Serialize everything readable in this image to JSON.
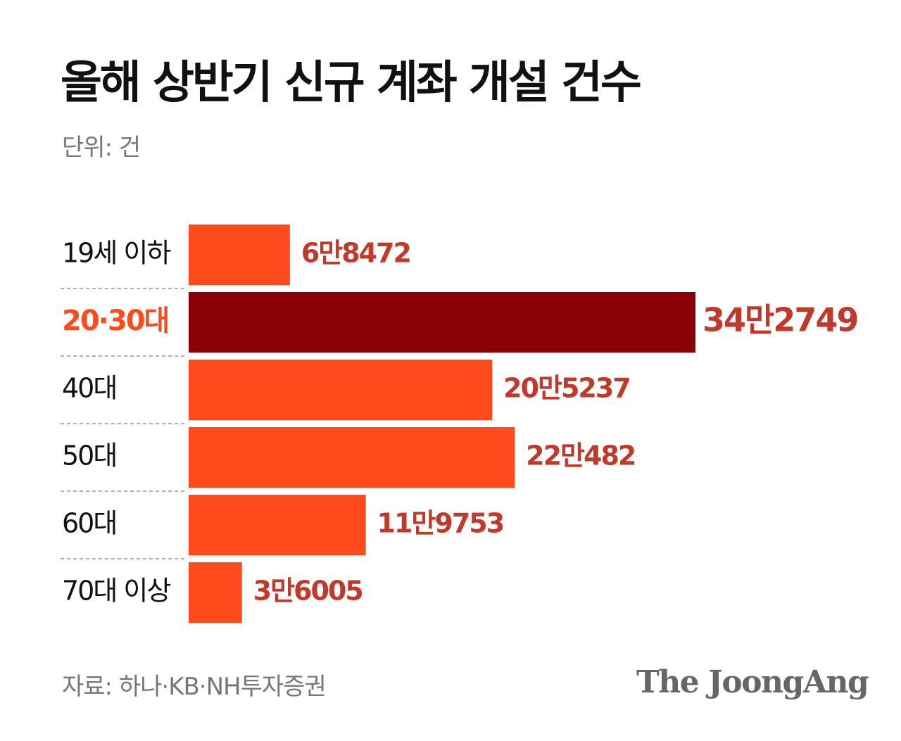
{
  "header": {
    "title": "올해 상반기 신규 계좌 개설 건수",
    "unit": "단위: 건"
  },
  "chart_data": {
    "type": "bar",
    "orientation": "horizontal",
    "categories": [
      "19세 이하",
      "20·30대",
      "40대",
      "50대",
      "60대",
      "70대 이상"
    ],
    "values": [
      68472,
      342749,
      205237,
      220482,
      119753,
      36005
    ],
    "value_labels": [
      "6만8472",
      "34만2749",
      "20만5237",
      "22만482",
      "11만9753",
      "3만6005"
    ],
    "highlight_index": 1,
    "xlim": [
      0,
      342749
    ],
    "grid": false
  },
  "colors": {
    "bar": "#ff4b1c",
    "highlight_bar": "#8b0006",
    "value_label": "#c0392b",
    "highlight_label": "#ff4b1c",
    "label": "#111111",
    "divider": "#b0b0b0"
  },
  "footer": {
    "source": "자료: 하나·KB·NH투자증권",
    "logo": "The JoongAng"
  }
}
